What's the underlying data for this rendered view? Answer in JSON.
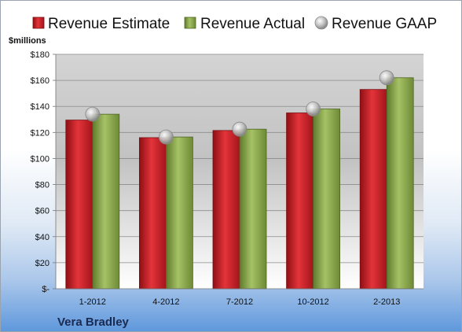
{
  "chart_data": {
    "type": "bar",
    "categories": [
      "1-2012",
      "4-2012",
      "7-2012",
      "10-2012",
      "2-2013"
    ],
    "series": [
      {
        "name": "Revenue Estimate",
        "kind": "bar",
        "color": "#cc1f26",
        "values": [
          129.5,
          116,
          121.5,
          135,
          153
        ]
      },
      {
        "name": "Revenue Actual",
        "kind": "bar",
        "color": "#8faa4f",
        "values": [
          134,
          116.5,
          122.5,
          138,
          162
        ]
      },
      {
        "name": "Revenue GAAP",
        "kind": "marker",
        "color": "#b8b8b8",
        "values": [
          134,
          116.5,
          122.5,
          138,
          162
        ]
      }
    ],
    "ylabel": "$millions",
    "ylim": [
      0,
      180
    ],
    "yticks": [
      0,
      20,
      40,
      60,
      80,
      100,
      120,
      140,
      160,
      180
    ],
    "ytick_labels": [
      "$-",
      "$20",
      "$40",
      "$60",
      "$80",
      "$100",
      "$120",
      "$140",
      "$160",
      "$180"
    ],
    "grid": true,
    "legend_position": "top",
    "footer": "Vera Bradley"
  }
}
